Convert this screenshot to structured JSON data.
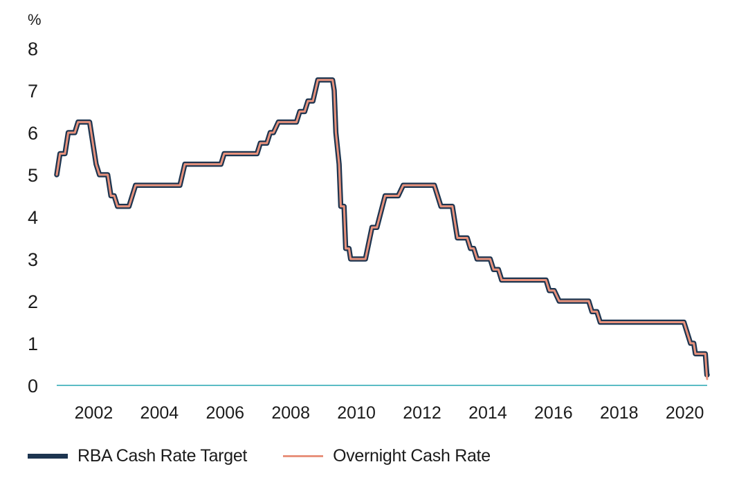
{
  "chart_data": {
    "type": "line",
    "y_unit": "%",
    "xlim": [
      2001.0,
      2020.85
    ],
    "ylim": [
      0,
      8
    ],
    "y_ticks": [
      0,
      1,
      2,
      3,
      4,
      5,
      6,
      7,
      8
    ],
    "x_ticks": [
      2002,
      2004,
      2006,
      2008,
      2010,
      2012,
      2014,
      2016,
      2018,
      2020
    ],
    "grid": false,
    "baseline": 0,
    "legend_position": "bottom-left",
    "colors": {
      "target": "#1d3550",
      "overnight": "#e8927c",
      "baseline": "#5bbcc4",
      "text": "#1b1b1b"
    },
    "series": [
      {
        "name": "RBA Cash Rate Target",
        "step": true,
        "points": [
          [
            2001.0,
            5.0
          ],
          [
            2001.1,
            5.5
          ],
          [
            2001.25,
            5.5
          ],
          [
            2001.35,
            6.0
          ],
          [
            2001.55,
            6.0
          ],
          [
            2001.65,
            6.25
          ],
          [
            2002.0,
            6.25
          ],
          [
            2002.1,
            5.75
          ],
          [
            2002.2,
            5.25
          ],
          [
            2002.3,
            5.0
          ],
          [
            2002.55,
            5.0
          ],
          [
            2002.65,
            4.5
          ],
          [
            2002.75,
            4.5
          ],
          [
            2002.85,
            4.25
          ],
          [
            2003.2,
            4.25
          ],
          [
            2003.4,
            4.75
          ],
          [
            2004.75,
            4.75
          ],
          [
            2004.9,
            5.25
          ],
          [
            2006.0,
            5.25
          ],
          [
            2006.1,
            5.5
          ],
          [
            2007.1,
            5.5
          ],
          [
            2007.2,
            5.75
          ],
          [
            2007.4,
            5.75
          ],
          [
            2007.5,
            6.0
          ],
          [
            2007.6,
            6.0
          ],
          [
            2007.75,
            6.25
          ],
          [
            2008.3,
            6.25
          ],
          [
            2008.4,
            6.5
          ],
          [
            2008.55,
            6.5
          ],
          [
            2008.65,
            6.75
          ],
          [
            2008.8,
            6.75
          ],
          [
            2008.95,
            7.25
          ],
          [
            2009.4,
            7.25
          ],
          [
            2009.45,
            7.0
          ],
          [
            2009.5,
            6.0
          ],
          [
            2009.6,
            5.25
          ],
          [
            2009.65,
            4.25
          ],
          [
            2009.75,
            4.25
          ],
          [
            2009.8,
            3.25
          ],
          [
            2009.9,
            3.25
          ],
          [
            2009.95,
            3.0
          ],
          [
            2010.4,
            3.0
          ],
          [
            2010.6,
            3.75
          ],
          [
            2010.75,
            3.75
          ],
          [
            2011.0,
            4.5
          ],
          [
            2011.4,
            4.5
          ],
          [
            2011.55,
            4.75
          ],
          [
            2012.5,
            4.75
          ],
          [
            2012.7,
            4.25
          ],
          [
            2013.05,
            4.25
          ],
          [
            2013.2,
            3.5
          ],
          [
            2013.5,
            3.5
          ],
          [
            2013.6,
            3.25
          ],
          [
            2013.7,
            3.25
          ],
          [
            2013.8,
            3.0
          ],
          [
            2014.2,
            3.0
          ],
          [
            2014.3,
            2.75
          ],
          [
            2014.45,
            2.75
          ],
          [
            2014.55,
            2.5
          ],
          [
            2015.9,
            2.5
          ],
          [
            2016.0,
            2.25
          ],
          [
            2016.15,
            2.25
          ],
          [
            2016.3,
            2.0
          ],
          [
            2017.2,
            2.0
          ],
          [
            2017.3,
            1.75
          ],
          [
            2017.45,
            1.75
          ],
          [
            2017.55,
            1.5
          ],
          [
            2020.1,
            1.5
          ],
          [
            2020.3,
            1.0
          ],
          [
            2020.4,
            1.0
          ],
          [
            2020.45,
            0.75
          ],
          [
            2020.75,
            0.75
          ],
          [
            2020.8,
            0.25
          ],
          [
            2021.1,
            0.25
          ]
        ]
      },
      {
        "name": "Overnight Cash Rate",
        "step": true,
        "points": [
          [
            2001.0,
            5.0
          ],
          [
            2001.1,
            5.5
          ],
          [
            2001.25,
            5.5
          ],
          [
            2001.35,
            6.0
          ],
          [
            2001.55,
            6.0
          ],
          [
            2001.65,
            6.25
          ],
          [
            2002.0,
            6.25
          ],
          [
            2002.1,
            5.75
          ],
          [
            2002.2,
            5.25
          ],
          [
            2002.3,
            5.0
          ],
          [
            2002.55,
            5.0
          ],
          [
            2002.65,
            4.5
          ],
          [
            2002.75,
            4.5
          ],
          [
            2002.85,
            4.25
          ],
          [
            2003.2,
            4.25
          ],
          [
            2003.4,
            4.75
          ],
          [
            2004.75,
            4.75
          ],
          [
            2004.9,
            5.25
          ],
          [
            2006.0,
            5.25
          ],
          [
            2006.1,
            5.5
          ],
          [
            2007.1,
            5.5
          ],
          [
            2007.2,
            5.75
          ],
          [
            2007.4,
            5.75
          ],
          [
            2007.5,
            6.0
          ],
          [
            2007.6,
            6.0
          ],
          [
            2007.75,
            6.25
          ],
          [
            2008.3,
            6.25
          ],
          [
            2008.4,
            6.5
          ],
          [
            2008.55,
            6.5
          ],
          [
            2008.65,
            6.75
          ],
          [
            2008.8,
            6.75
          ],
          [
            2008.95,
            7.25
          ],
          [
            2009.4,
            7.25
          ],
          [
            2009.45,
            7.0
          ],
          [
            2009.5,
            6.0
          ],
          [
            2009.6,
            5.25
          ],
          [
            2009.65,
            4.25
          ],
          [
            2009.75,
            4.25
          ],
          [
            2009.8,
            3.25
          ],
          [
            2009.9,
            3.25
          ],
          [
            2009.95,
            3.0
          ],
          [
            2010.4,
            3.0
          ],
          [
            2010.6,
            3.75
          ],
          [
            2010.75,
            3.75
          ],
          [
            2011.0,
            4.5
          ],
          [
            2011.4,
            4.5
          ],
          [
            2011.55,
            4.75
          ],
          [
            2012.5,
            4.75
          ],
          [
            2012.7,
            4.25
          ],
          [
            2013.05,
            4.25
          ],
          [
            2013.2,
            3.5
          ],
          [
            2013.5,
            3.5
          ],
          [
            2013.6,
            3.25
          ],
          [
            2013.7,
            3.25
          ],
          [
            2013.8,
            3.0
          ],
          [
            2014.2,
            3.0
          ],
          [
            2014.3,
            2.75
          ],
          [
            2014.45,
            2.75
          ],
          [
            2014.55,
            2.5
          ],
          [
            2015.9,
            2.5
          ],
          [
            2016.0,
            2.25
          ],
          [
            2016.15,
            2.25
          ],
          [
            2016.3,
            2.0
          ],
          [
            2017.2,
            2.0
          ],
          [
            2017.3,
            1.75
          ],
          [
            2017.45,
            1.75
          ],
          [
            2017.55,
            1.5
          ],
          [
            2020.1,
            1.5
          ],
          [
            2020.3,
            1.0
          ],
          [
            2020.4,
            1.0
          ],
          [
            2020.45,
            0.75
          ],
          [
            2020.75,
            0.75
          ],
          [
            2020.8,
            0.2
          ],
          [
            2021.0,
            0.15
          ]
        ]
      }
    ]
  }
}
